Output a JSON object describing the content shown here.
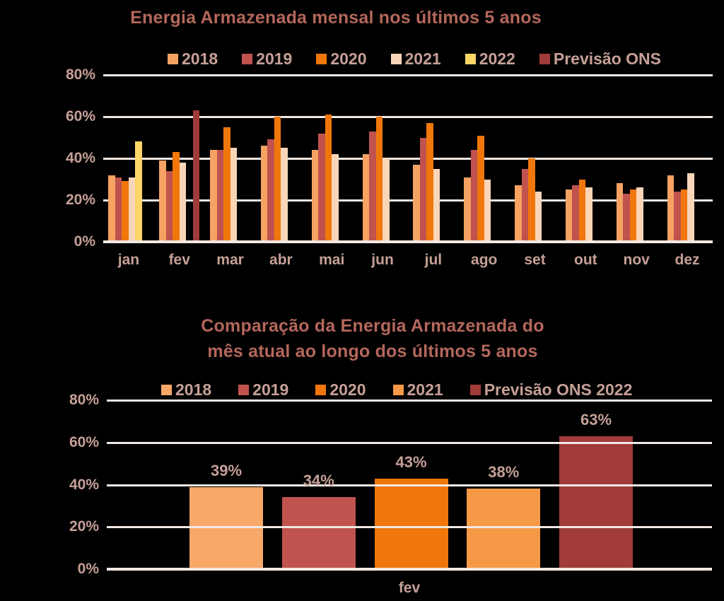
{
  "colors": {
    "background": "#000000",
    "title_text": "#b4675b",
    "tick_text": "#c5a096",
    "gridline": "#f2e8e3"
  },
  "chart_data": [
    {
      "type": "bar",
      "title": "Energia Armazenada mensal nos últimos 5 anos",
      "categories": [
        "jan",
        "fev",
        "mar",
        "abr",
        "mai",
        "jun",
        "jul",
        "ago",
        "set",
        "out",
        "nov",
        "dez"
      ],
      "series": [
        {
          "name": "2018",
          "color": "#f5a263",
          "values": [
            32,
            39,
            44,
            46,
            44,
            42,
            37,
            31,
            27,
            25,
            28,
            32
          ]
        },
        {
          "name": "2019",
          "color": "#c0534e",
          "values": [
            31,
            34,
            44,
            49,
            52,
            53,
            50,
            44,
            35,
            27,
            23,
            24
          ]
        },
        {
          "name": "2020",
          "color": "#f0770b",
          "values": [
            29,
            43,
            55,
            60,
            61,
            60,
            57,
            51,
            40,
            30,
            25,
            25
          ]
        },
        {
          "name": "2021",
          "color": "#f9d6b8",
          "values": [
            31,
            38,
            45,
            45,
            42,
            40,
            35,
            30,
            24,
            26,
            26,
            33
          ]
        },
        {
          "name": "2022",
          "color": "#fcd767",
          "values": [
            48,
            null,
            null,
            null,
            null,
            null,
            null,
            null,
            null,
            null,
            null,
            null
          ]
        },
        {
          "name": "Previsão ONS",
          "color": "#a03b39",
          "values": [
            null,
            63,
            null,
            null,
            null,
            null,
            null,
            null,
            null,
            null,
            null,
            null
          ]
        }
      ],
      "yticks": [
        "80%",
        "60%",
        "40%",
        "20%",
        "0%"
      ],
      "ylim": [
        0,
        80
      ],
      "grid": "horizontal, behind bars",
      "legend_position": "top"
    },
    {
      "type": "bar",
      "title_line1": "Comparação da Energia Armazenada do",
      "title_line2": "mês atual ao longo dos últimos 5 anos",
      "categories": [
        "fev"
      ],
      "series": [
        {
          "name": "2018",
          "color": "#f8a869",
          "value": 39,
          "label": "39%"
        },
        {
          "name": "2019",
          "color": "#c0534e",
          "value": 34,
          "label": "34%"
        },
        {
          "name": "2020",
          "color": "#f0770b",
          "value": 43,
          "label": "43%"
        },
        {
          "name": "2021",
          "color": "#f69947",
          "value": 38,
          "label": "38%"
        },
        {
          "name": "Previsão ONS 2022",
          "color": "#a03b39",
          "value": 63,
          "label": "63%"
        }
      ],
      "yticks": [
        "80%",
        "60%",
        "40%",
        "20%",
        "0%"
      ],
      "ylim": [
        0,
        80
      ],
      "grid": "horizontal, in front of bars",
      "legend_position": "top"
    }
  ]
}
